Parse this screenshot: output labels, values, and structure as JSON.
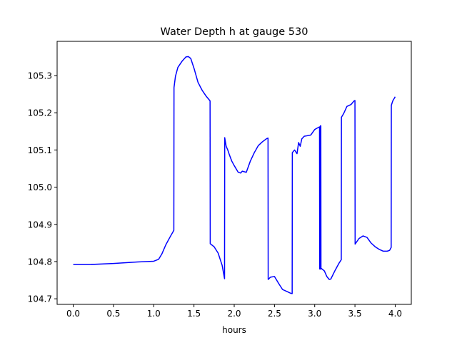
{
  "chart_data": {
    "type": "line",
    "title": "Water Depth h at gauge 530",
    "xlabel": "hours",
    "ylabel": "",
    "xlim": [
      -0.2,
      4.2
    ],
    "ylim": [
      104.685,
      105.392
    ],
    "xticks": [
      0.0,
      0.5,
      1.0,
      1.5,
      2.0,
      2.5,
      3.0,
      3.5,
      4.0
    ],
    "xtick_labels": [
      "0.0",
      "0.5",
      "1.0",
      "1.5",
      "2.0",
      "2.5",
      "3.0",
      "3.5",
      "4.0"
    ],
    "yticks": [
      104.7,
      104.8,
      104.9,
      105.0,
      105.1,
      105.2,
      105.3
    ],
    "ytick_labels": [
      "104.7",
      "104.8",
      "104.9",
      "105.0",
      "105.1",
      "105.2",
      "105.3"
    ],
    "grid": false,
    "series": [
      {
        "name": "",
        "color": "#0000ff",
        "x": [
          0.0,
          0.2,
          0.5,
          0.8,
          1.0,
          1.06,
          1.1,
          1.15,
          1.2,
          1.25,
          1.252,
          1.27,
          1.3,
          1.35,
          1.4,
          1.43,
          1.46,
          1.5,
          1.55,
          1.6,
          1.65,
          1.7,
          1.702,
          1.75,
          1.8,
          1.85,
          1.88,
          1.882,
          1.9,
          1.92,
          1.94,
          1.97,
          2.0,
          2.05,
          2.08,
          2.1,
          2.15,
          2.2,
          2.25,
          2.3,
          2.35,
          2.4,
          2.42,
          2.422,
          2.45,
          2.5,
          2.55,
          2.6,
          2.65,
          2.7,
          2.72,
          2.722,
          2.75,
          2.78,
          2.8,
          2.82,
          2.84,
          2.87,
          2.9,
          2.95,
          3.0,
          3.04,
          3.06,
          3.062,
          3.065,
          3.067,
          3.07,
          3.072,
          3.076,
          3.078,
          3.08,
          3.12,
          3.15,
          3.18,
          3.2,
          3.25,
          3.3,
          3.33,
          3.332,
          3.36,
          3.4,
          3.45,
          3.49,
          3.5,
          3.502,
          3.55,
          3.6,
          3.65,
          3.7,
          3.75,
          3.8,
          3.85,
          3.9,
          3.93,
          3.95,
          3.952,
          3.97,
          4.0
        ],
        "y": [
          104.792,
          104.792,
          104.795,
          104.799,
          104.801,
          104.806,
          104.82,
          104.845,
          104.865,
          104.884,
          105.268,
          105.298,
          105.322,
          105.338,
          105.35,
          105.351,
          105.346,
          105.32,
          105.282,
          105.261,
          105.245,
          105.232,
          104.848,
          104.84,
          104.823,
          104.79,
          104.754,
          105.133,
          105.11,
          105.1,
          105.087,
          105.07,
          105.058,
          105.04,
          105.038,
          105.043,
          105.04,
          105.07,
          105.093,
          105.112,
          105.122,
          105.13,
          105.132,
          104.752,
          104.758,
          104.76,
          104.742,
          104.725,
          104.72,
          104.715,
          104.714,
          105.093,
          105.1,
          105.09,
          105.12,
          105.11,
          105.13,
          105.137,
          105.138,
          105.14,
          105.155,
          105.16,
          105.162,
          104.78,
          105.16,
          104.78,
          105.165,
          104.78,
          105.165,
          104.78,
          104.782,
          104.775,
          104.76,
          104.752,
          104.753,
          104.775,
          104.795,
          104.805,
          105.188,
          105.198,
          105.217,
          105.222,
          105.232,
          105.233,
          104.847,
          104.862,
          104.869,
          104.865,
          104.85,
          104.84,
          104.833,
          104.828,
          104.828,
          104.83,
          104.838,
          105.22,
          105.232,
          105.243
        ]
      }
    ]
  }
}
